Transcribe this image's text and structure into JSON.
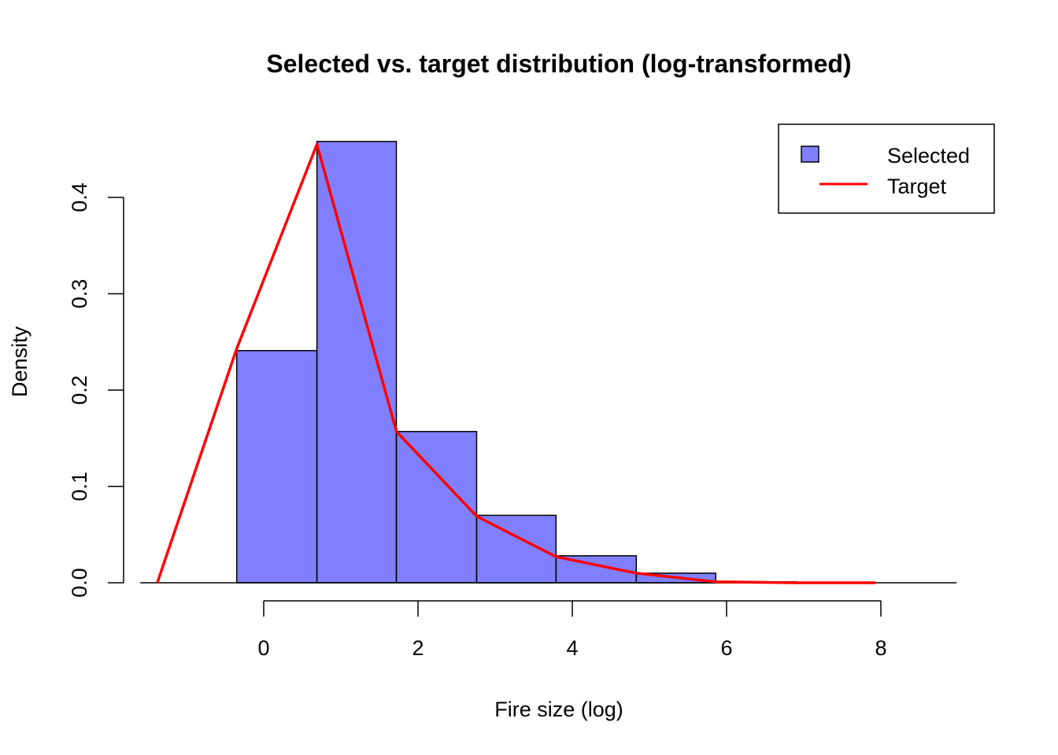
{
  "chart_data": {
    "type": "bar",
    "title": "Selected vs. target distribution (log-transformed)",
    "xlabel": "Fire size (log)",
    "ylabel": "Density",
    "xlim": [
      -1.35,
      8.9
    ],
    "ylim": [
      0,
      0.46
    ],
    "x_ticks": [
      0,
      2,
      4,
      6,
      8
    ],
    "y_ticks": [
      0.0,
      0.1,
      0.2,
      0.3,
      0.4
    ],
    "x_tick_labels": [
      "0",
      "2",
      "4",
      "6",
      "8"
    ],
    "y_tick_labels": [
      "0.0",
      "0.1",
      "0.2",
      "0.3",
      "0.4"
    ],
    "bar_fill": "#8080ff",
    "line_color": "#ff0000",
    "series": [
      {
        "name": "Selected",
        "type": "histogram",
        "bins": [
          {
            "x0": -0.35,
            "x1": 0.69,
            "density": 0.241
          },
          {
            "x0": 0.69,
            "x1": 1.72,
            "density": 0.458
          },
          {
            "x0": 1.72,
            "x1": 2.76,
            "density": 0.157
          },
          {
            "x0": 2.76,
            "x1": 3.79,
            "density": 0.07
          },
          {
            "x0": 3.79,
            "x1": 4.83,
            "density": 0.028
          },
          {
            "x0": 4.83,
            "x1": 5.86,
            "density": 0.01
          },
          {
            "x0": 5.86,
            "x1": 6.9,
            "density": 0.001
          },
          {
            "x0": 6.9,
            "x1": 7.93,
            "density": 0.0
          },
          {
            "x0": 7.93,
            "x1": 8.97,
            "density": 0.0
          }
        ]
      },
      {
        "name": "Target",
        "type": "line",
        "x": [
          -1.38,
          -0.35,
          0.69,
          1.72,
          2.76,
          3.79,
          4.83,
          5.86,
          6.9,
          7.93
        ],
        "y": [
          0.0,
          0.243,
          0.455,
          0.157,
          0.069,
          0.027,
          0.01,
          0.001,
          0.0,
          0.0
        ]
      }
    ],
    "legend": {
      "position": "top-right",
      "entries": [
        "Selected",
        "Target"
      ]
    }
  }
}
